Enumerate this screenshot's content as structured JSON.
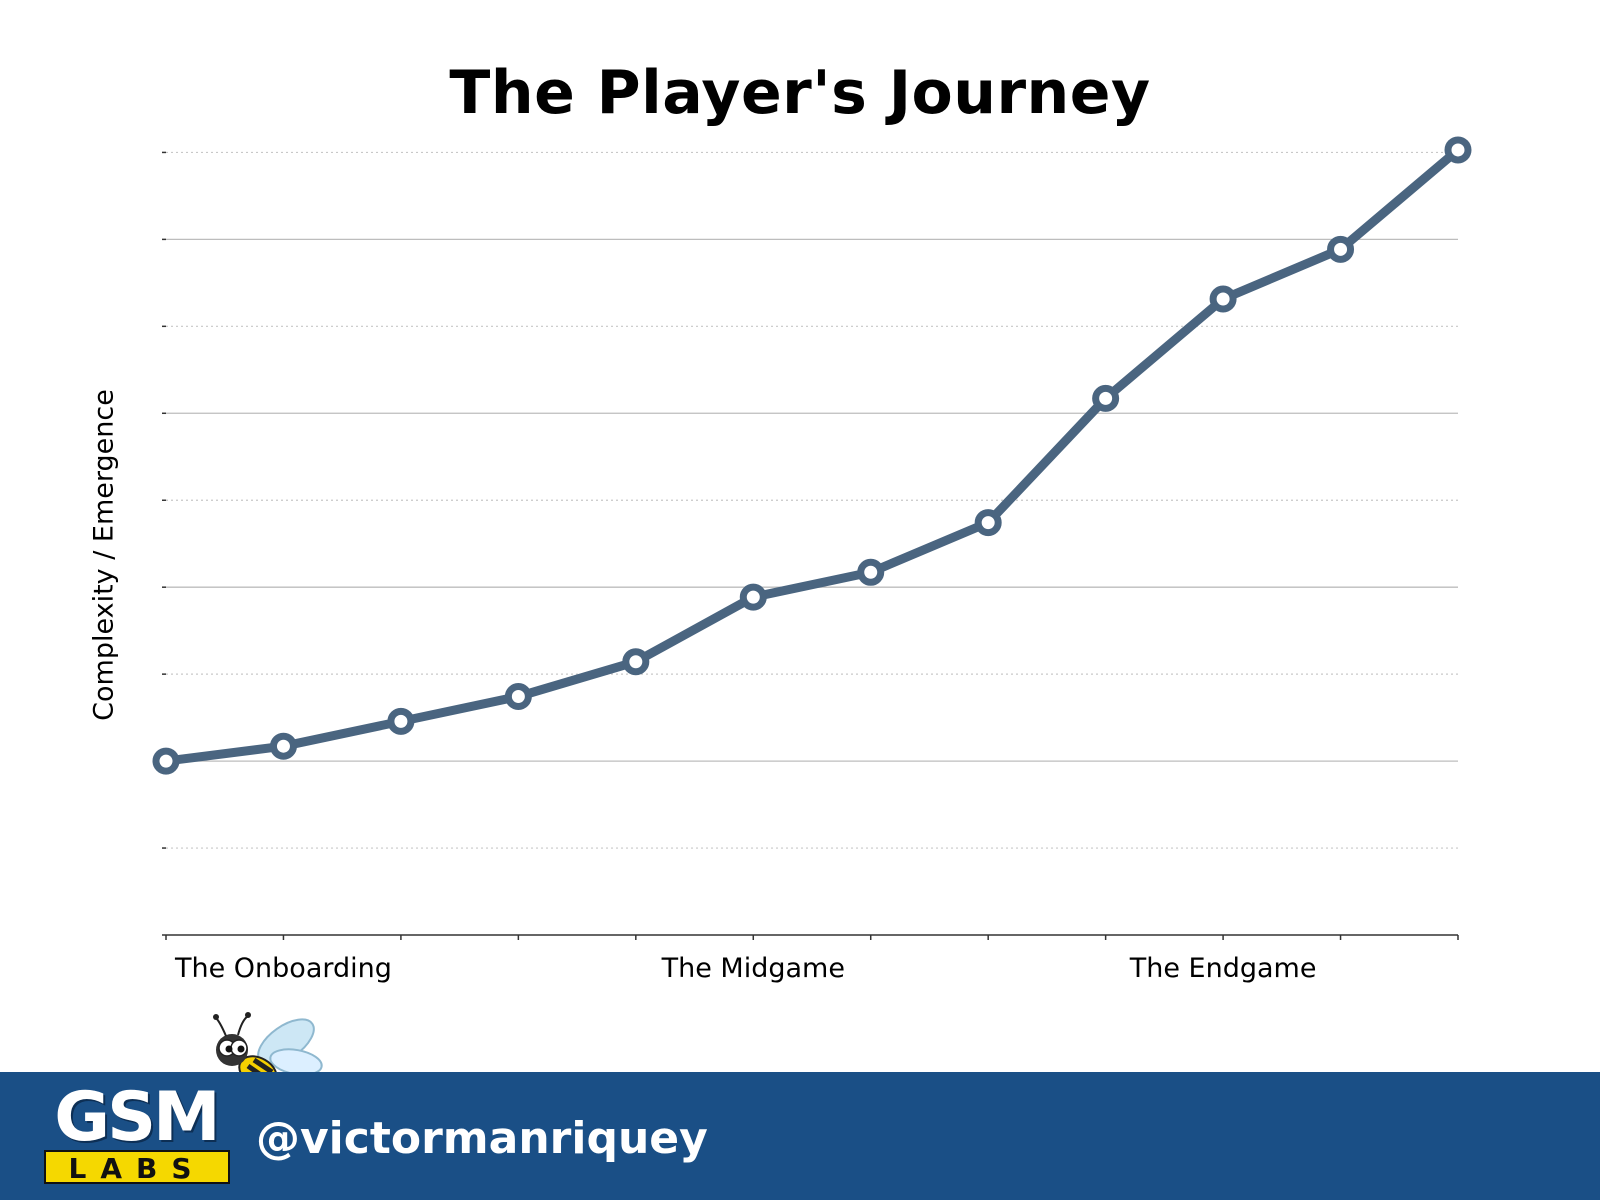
{
  "chart_data": {
    "type": "line",
    "title": "The Player's Journey",
    "ylabel": "Complexity / Emergence",
    "xlabel": "",
    "x": [
      0,
      1,
      2,
      3,
      4,
      5,
      6,
      7,
      8,
      9,
      10,
      11
    ],
    "x_tick_labels": [
      {
        "x": 1,
        "label": "The Onboarding"
      },
      {
        "x": 5,
        "label": "The Midgame"
      },
      {
        "x": 9,
        "label": "The Endgame"
      }
    ],
    "series": [
      {
        "values": [
          7,
          7.6,
          8.6,
          9.6,
          11,
          13.6,
          14.6,
          16.6,
          21.6,
          25.6,
          27.6,
          31.6
        ]
      }
    ],
    "ylim": [
      0,
      32
    ],
    "y_gridlines": [
      3.5,
      7,
      10.5,
      14,
      17.5,
      21,
      24.5,
      28,
      31.5
    ],
    "grid": true,
    "line_color": "#4a6580",
    "marker_fill": "#ffffff"
  },
  "footer": {
    "handle": "@victormanriquey",
    "logo_top": "GSM",
    "logo_bottom": "LABS",
    "background": "#1a4f86"
  }
}
